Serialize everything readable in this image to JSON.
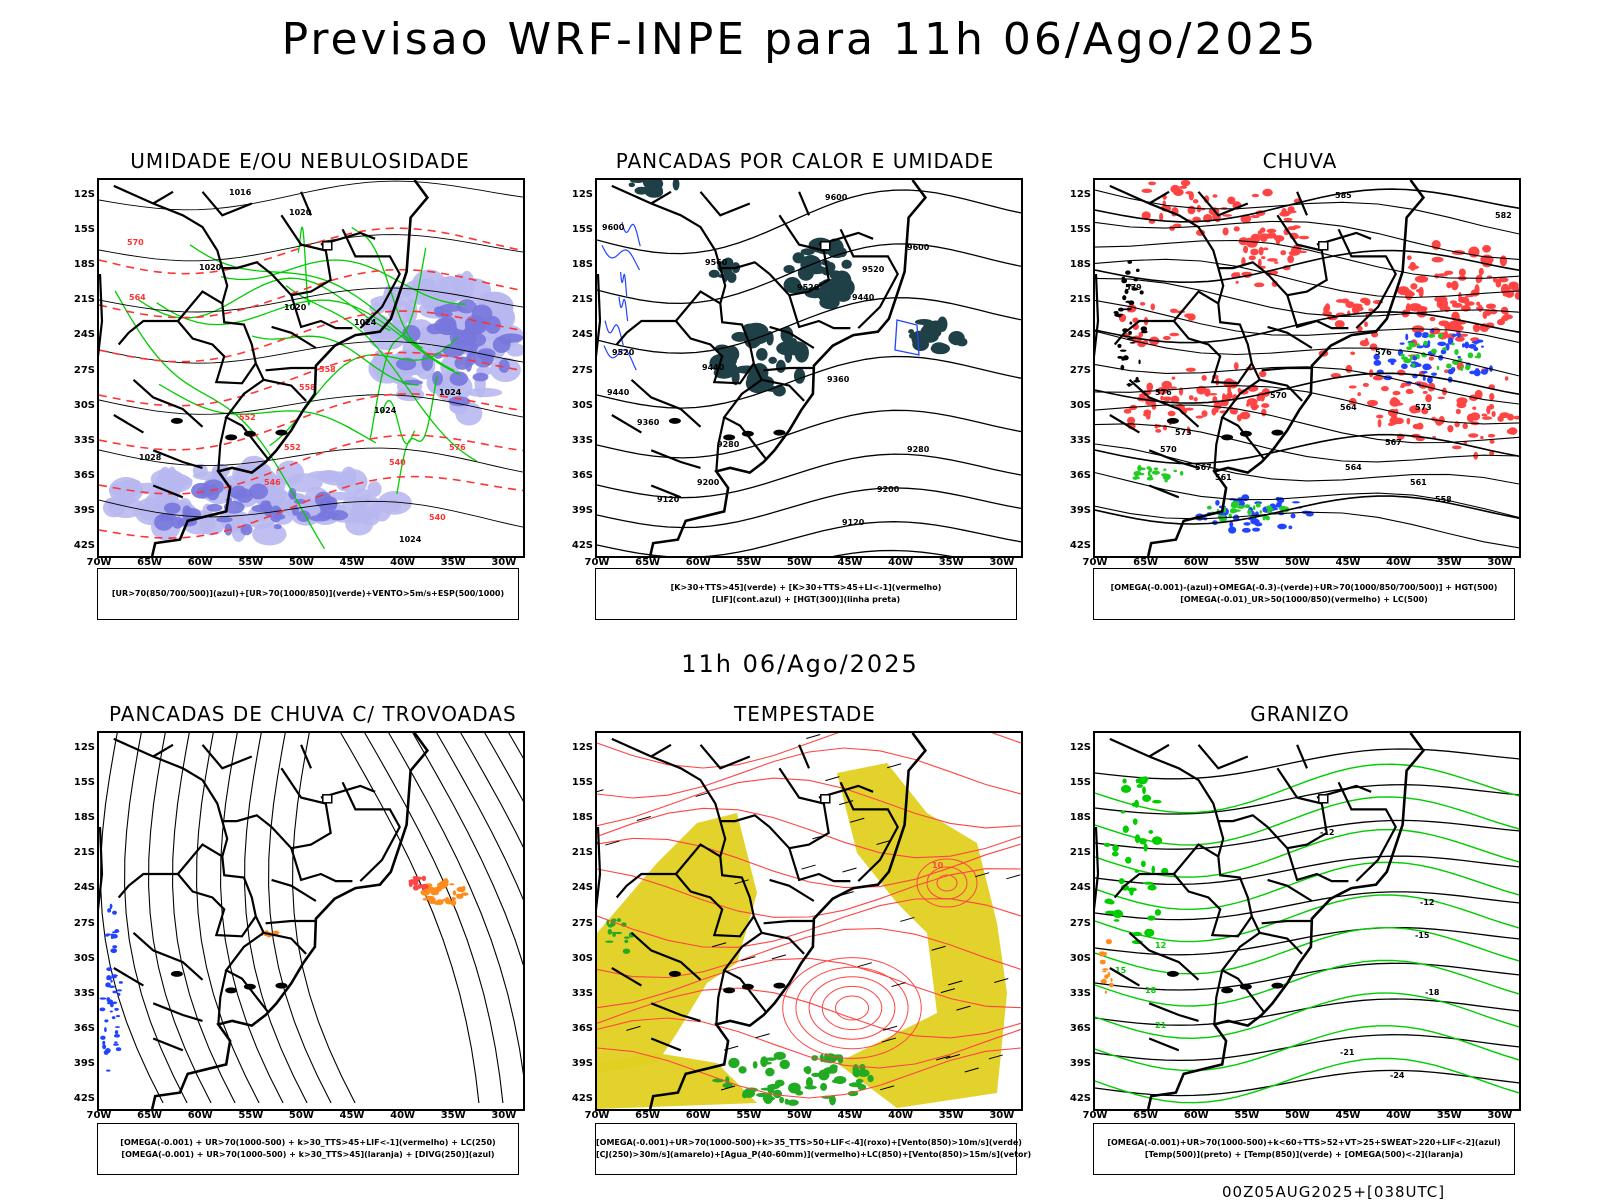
{
  "main_title": "Previsao WRF-INPE  para 11h 06/Ago/2025",
  "mid_title": "11h 06/Ago/2025",
  "footer_stamp": "00Z05AUG2025+[038UTC]",
  "lat_labels": [
    "12S",
    "15S",
    "18S",
    "21S",
    "24S",
    "27S",
    "30S",
    "33S",
    "36S",
    "39S",
    "42S"
  ],
  "lon_labels": [
    "70W",
    "65W",
    "60W",
    "55W",
    "50W",
    "45W",
    "40W",
    "35W",
    "30W"
  ],
  "colors": {
    "contour_black": "#000000",
    "humidity_green": "#00cc00",
    "humidity_blue": "#7777dd",
    "thickness_red": "#ff3333",
    "convection_dark": "#1e4046",
    "lifted_blue": "#2244ff",
    "rain_red": "#ff4444",
    "rain_blue": "#2244ff",
    "rain_green": "#22cc22",
    "storm_yellow": "#e0d020",
    "storm_green": "#22aa22",
    "orange": "#ff8c1a"
  },
  "panels": [
    {
      "title": "UMIDADE E/OU NEBULOSIDADE",
      "legend": [
        "[UR>70(850/700/500)](azul)+[UR>70(1000/850)](verde)+VENTO>5m/s+ESP(500/1000)"
      ],
      "labels": [
        "1016",
        "1020",
        "1020",
        "1020",
        "1024",
        "1024",
        "1024",
        "1028",
        "1024",
        "576",
        "570",
        "564",
        "558",
        "552",
        "546",
        "540",
        "540",
        "552",
        "558"
      ]
    },
    {
      "title": "PANCADAS POR CALOR E UMIDADE",
      "legend": [
        "[K>30+TTS>45](verde) + [K>30+TTS>45+LI<-1](vermelho)",
        "[LIF](cont.azul) + [HGT(300)](linha preta)"
      ],
      "labels": [
        "9600",
        "9600",
        "9560",
        "9520",
        "9520",
        "9440",
        "9440",
        "9360",
        "9360",
        "9280",
        "9280",
        "9200",
        "9200",
        "9120",
        "9120",
        "9600",
        "9520",
        "9440"
      ]
    },
    {
      "title": "CHUVA",
      "legend": [
        "[OMEGA(-0.001)-(azul)+OMEGA(-0.3)-(verde)+UR>70(1000/850/700/500)] + HGT(500)",
        "[OMEGA(-0.01)_UR>50(1000/850)(vermelho) + LC(500)"
      ],
      "labels": [
        "585",
        "582",
        "579",
        "576",
        "573",
        "570",
        "567",
        "564",
        "561",
        "558",
        "576",
        "573",
        "570",
        "567",
        "564",
        "561"
      ]
    },
    {
      "title": "PANCADAS DE CHUVA C/ TROVOADAS",
      "legend": [
        "[OMEGA(-0.001) + UR>70(1000-500) + k>30_TTS>45+LIF<-1](vermelho) + LC(250)",
        "[OMEGA(-0.001) + UR>70(1000-500) + k>30_TTS>45](laranja) + [DIVG(250)](azul)"
      ],
      "labels": []
    },
    {
      "title": "TEMPESTADE",
      "legend": [
        "[OMEGA(-0.001)+UR>70(1000-500)+k>35_TTS>50+LIF<-4](roxo)+[Vento(850)>10m/s](verde)",
        "[CJ(250)>30m/s](amarelo)+[Agua_P(40-60mm)](vermelho)+LC(850)+[Vento(850)>15m/s](vetor)"
      ],
      "labels": [
        "10"
      ]
    },
    {
      "title": "GRANIZO",
      "legend": [
        "[OMEGA(-0.001)+UR>70(1000-500)+k<60+TTS>52+VT>25+SWEAT>220+LIF<-2](azul)",
        "[Temp(500)](preto) + [Temp(850)](verde) + [OMEGA(500)<-2](laranja)"
      ],
      "labels": [
        "-12",
        "-12",
        "-15",
        "-18",
        "-21",
        "-24",
        "15",
        "12",
        "18",
        "21"
      ]
    }
  ]
}
